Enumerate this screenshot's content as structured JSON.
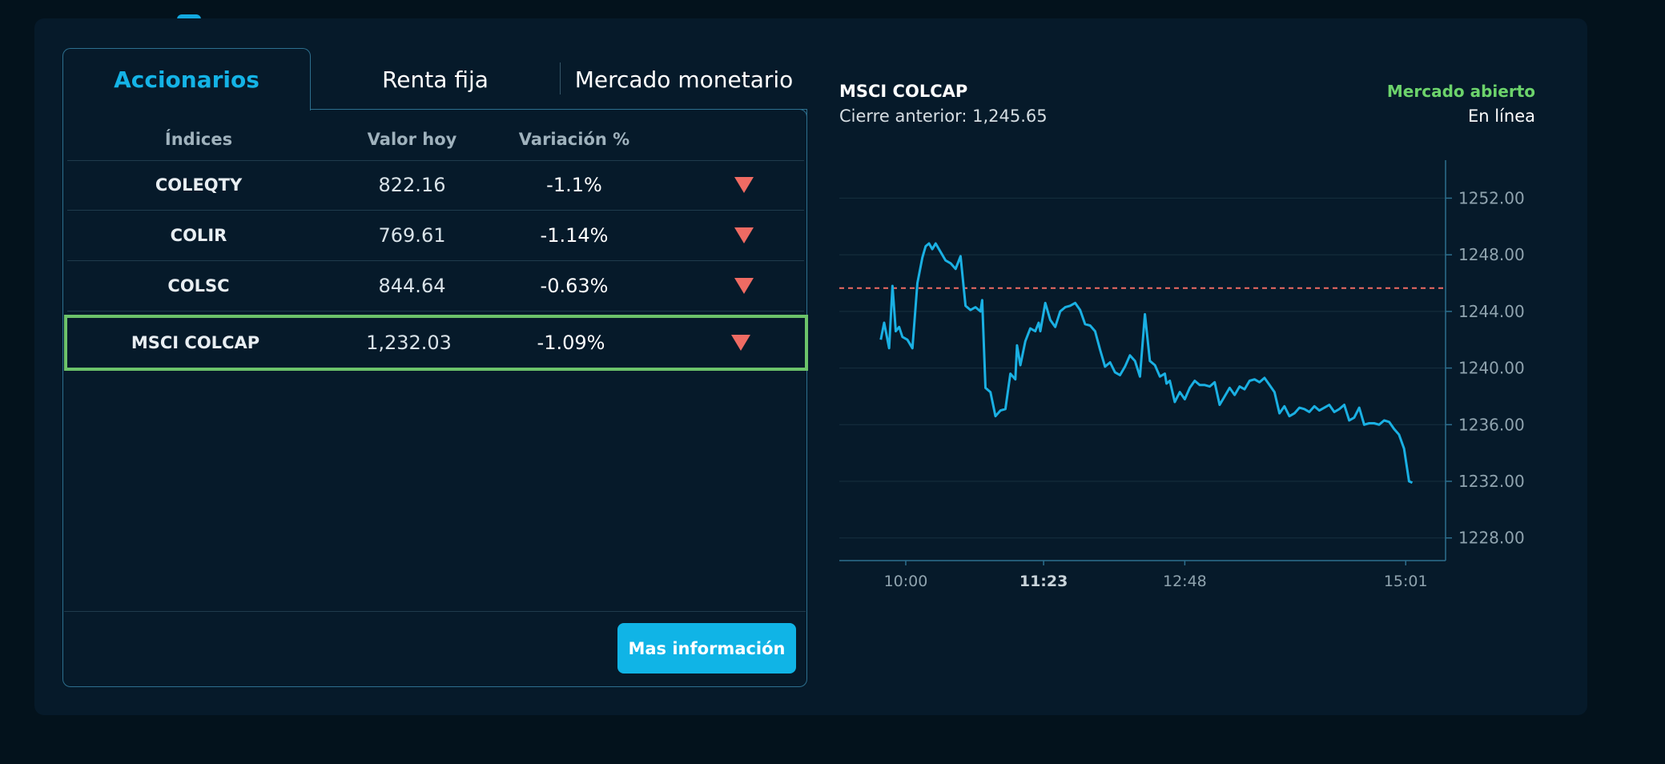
{
  "tabs": {
    "active": "Accionarios",
    "renta_fija": "Renta fija",
    "mercado_monetario": "Mercado monetario"
  },
  "table": {
    "headers": [
      "Índices",
      "Valor hoy",
      "Variación %"
    ],
    "rows": [
      {
        "name": "COLEQTY",
        "value": "822.16",
        "variation": "-1.1%",
        "trend": "down"
      },
      {
        "name": "COLIR",
        "value": "769.61",
        "variation": "-1.14%",
        "trend": "down"
      },
      {
        "name": "COLSC",
        "value": "844.64",
        "variation": "-0.63%",
        "trend": "down"
      },
      {
        "name": "MSCI COLCAP",
        "value": "1,232.03",
        "variation": "-1.09%",
        "trend": "down",
        "selected": true
      }
    ]
  },
  "button": {
    "label": "Mas información"
  },
  "chart_header": {
    "title": "MSCI COLCAP",
    "previous_close": "Cierre anterior: 1,245.65",
    "status": "Mercado abierto",
    "online": "En línea"
  },
  "colors": {
    "accent": "#14b3e6",
    "down": "#ef6b63",
    "open": "#6cd36b",
    "line": "#1ab0e3",
    "reference": "#ef6b63",
    "background": "#061a2a"
  },
  "chart_data": {
    "type": "line",
    "title": "MSCI COLCAP",
    "xlabel": "",
    "ylabel": "",
    "y_ticks": [
      "1252.00",
      "1248.00",
      "1244.00",
      "1240.00",
      "1236.00",
      "1232.00",
      "1228.00"
    ],
    "x_ticks": [
      "10:00",
      "11:23",
      "12:48",
      "15:01"
    ],
    "x_tick_minutes": [
      600,
      683,
      768,
      901
    ],
    "highlighted_x_tick": "11:23",
    "ylim": [
      1226.4,
      1254.4
    ],
    "xlim": [
      560,
      925
    ],
    "reference_line": 1245.65,
    "series": [
      {
        "x": [
          585,
          587,
          590,
          592,
          594,
          596,
          598,
          601,
          604,
          607,
          610,
          612,
          614,
          616,
          618,
          621,
          624,
          627,
          630,
          633,
          636,
          639,
          642,
          645,
          646,
          648,
          651,
          654,
          657,
          660,
          663,
          666,
          667,
          669,
          672,
          675,
          678,
          680,
          681,
          684,
          687,
          690,
          693,
          696,
          699,
          702,
          705,
          708,
          711,
          714,
          717,
          720,
          723,
          726,
          729,
          732,
          735,
          738,
          741,
          744,
          747,
          750,
          753,
          756,
          757,
          759,
          762,
          765,
          768,
          771,
          774,
          777,
          780,
          783,
          786,
          789,
          792,
          795,
          798,
          801,
          804,
          807,
          810,
          813,
          816,
          819,
          822,
          825,
          828,
          831,
          834,
          837,
          840,
          843,
          846,
          849,
          852,
          855,
          858,
          861,
          864,
          867,
          870,
          873,
          876,
          879,
          882,
          885,
          888,
          891,
          894,
          897,
          900,
          903,
          905
        ],
        "y": [
          1242.0,
          1243.2,
          1241.4,
          1245.8,
          1242.6,
          1242.9,
          1242.2,
          1242.0,
          1241.4,
          1246.0,
          1247.8,
          1248.6,
          1248.8,
          1248.4,
          1248.8,
          1248.2,
          1247.6,
          1247.4,
          1247.0,
          1247.9,
          1244.4,
          1244.1,
          1244.3,
          1244.0,
          1244.8,
          1238.6,
          1238.3,
          1236.6,
          1237.0,
          1237.1,
          1239.6,
          1239.2,
          1241.6,
          1240.2,
          1241.9,
          1242.8,
          1242.6,
          1243.2,
          1242.6,
          1244.6,
          1243.4,
          1242.9,
          1244.0,
          1244.3,
          1244.4,
          1244.6,
          1244.1,
          1243.1,
          1243.0,
          1242.6,
          1241.3,
          1240.1,
          1240.4,
          1239.7,
          1239.5,
          1240.1,
          1240.9,
          1240.5,
          1239.4,
          1243.8,
          1240.5,
          1240.2,
          1239.4,
          1239.6,
          1238.9,
          1239.1,
          1237.6,
          1238.3,
          1237.8,
          1238.6,
          1239.1,
          1238.8,
          1238.8,
          1238.7,
          1239.0,
          1237.4,
          1238.0,
          1238.6,
          1238.1,
          1238.7,
          1238.5,
          1239.1,
          1239.2,
          1239.0,
          1239.3,
          1238.8,
          1238.3,
          1236.8,
          1237.3,
          1236.6,
          1236.8,
          1237.2,
          1237.1,
          1236.9,
          1237.3,
          1237.0,
          1237.2,
          1237.4,
          1236.9,
          1237.1,
          1237.4,
          1236.3,
          1236.5,
          1237.2,
          1236.0,
          1236.1,
          1236.1,
          1236.0,
          1236.3,
          1236.2,
          1235.7,
          1235.3,
          1234.3,
          1232.0,
          1231.9
        ]
      }
    ],
    "grid": true,
    "legend": "none"
  }
}
